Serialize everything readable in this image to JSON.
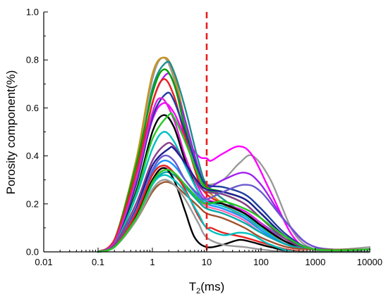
{
  "chart_data": {
    "type": "line",
    "x_scale": "log",
    "xlim": [
      0.01,
      10000
    ],
    "ylim": [
      0.0,
      1.0
    ],
    "xlabel_main": "T",
    "xlabel_sub": "2",
    "xlabel_unit": "(ms)",
    "ylabel": "Porosity component(%)",
    "xticks": [
      "0.01",
      "0.1",
      "1",
      "10",
      "100",
      "1000",
      "10000"
    ],
    "xtick_values": [
      0.01,
      0.1,
      1,
      10,
      100,
      1000,
      10000
    ],
    "yticks": [
      "0.0",
      "0.2",
      "0.4",
      "0.6",
      "0.8",
      "1.0"
    ],
    "ytick_values": [
      0.0,
      0.2,
      0.4,
      0.6,
      0.8,
      1.0
    ],
    "cutoff_line": {
      "x": 10,
      "color": "#e8201e",
      "style": "dashed"
    },
    "grid": false,
    "legend": "none",
    "series": [
      {
        "color": "#9a9a9a",
        "x": [
          0.1,
          0.2,
          0.5,
          1,
          1.6,
          2.5,
          4,
          7,
          10,
          20,
          40,
          70,
          150,
          400,
          1000,
          3000,
          10000
        ],
        "y": [
          0.0,
          0.05,
          0.38,
          0.72,
          0.81,
          0.72,
          0.5,
          0.31,
          0.28,
          0.3,
          0.37,
          0.4,
          0.3,
          0.08,
          0.01,
          0.01,
          0.02
        ]
      },
      {
        "color": "#ff00ff",
        "x": [
          0.1,
          0.2,
          0.5,
          1,
          1.6,
          2.5,
          4,
          7,
          10,
          12,
          20,
          40,
          70,
          150,
          400,
          1000,
          10000
        ],
        "y": [
          0.0,
          0.04,
          0.3,
          0.55,
          0.62,
          0.58,
          0.48,
          0.4,
          0.39,
          0.38,
          0.41,
          0.44,
          0.4,
          0.25,
          0.06,
          0.01,
          0.01
        ]
      },
      {
        "color": "#c8941e",
        "x": [
          0.1,
          0.2,
          0.5,
          1,
          1.7,
          2.5,
          4,
          7,
          10,
          20,
          50,
          100,
          300,
          1000,
          10000
        ],
        "y": [
          0.0,
          0.05,
          0.38,
          0.74,
          0.81,
          0.74,
          0.55,
          0.33,
          0.26,
          0.2,
          0.14,
          0.1,
          0.04,
          0.01,
          0.01
        ]
      },
      {
        "color": "#1e8c8c",
        "x": [
          0.1,
          0.2,
          0.5,
          1,
          1.8,
          2.5,
          4,
          7,
          10,
          20,
          50,
          100,
          300,
          1000,
          10000
        ],
        "y": [
          0.0,
          0.04,
          0.33,
          0.68,
          0.79,
          0.75,
          0.6,
          0.38,
          0.28,
          0.22,
          0.16,
          0.12,
          0.05,
          0.01,
          0.01
        ]
      },
      {
        "color": "#a020f0",
        "x": [
          0.1,
          0.2,
          0.5,
          1,
          1.8,
          2.5,
          4,
          7,
          10,
          20,
          50,
          100,
          300,
          1000,
          10000
        ],
        "y": [
          0.0,
          0.04,
          0.3,
          0.62,
          0.74,
          0.7,
          0.55,
          0.35,
          0.27,
          0.3,
          0.33,
          0.28,
          0.12,
          0.02,
          0.01
        ]
      },
      {
        "color": "#00a000",
        "x": [
          0.1,
          0.2,
          0.5,
          1,
          1.6,
          2.5,
          4,
          7,
          10,
          20,
          50,
          100,
          300,
          1000,
          10000
        ],
        "y": [
          0.0,
          0.05,
          0.36,
          0.66,
          0.76,
          0.7,
          0.52,
          0.33,
          0.27,
          0.25,
          0.22,
          0.16,
          0.06,
          0.01,
          0.01
        ]
      },
      {
        "color": "#e8201e",
        "x": [
          0.1,
          0.2,
          0.5,
          1,
          1.6,
          2.5,
          4,
          7,
          10,
          20,
          50,
          100,
          300,
          1000,
          10000
        ],
        "y": [
          0.0,
          0.05,
          0.33,
          0.62,
          0.72,
          0.65,
          0.48,
          0.3,
          0.24,
          0.2,
          0.16,
          0.11,
          0.04,
          0.01,
          0.01
        ]
      },
      {
        "color": "#1e3ca0",
        "x": [
          0.1,
          0.2,
          0.5,
          1,
          1.8,
          2.5,
          4,
          7,
          10,
          20,
          50,
          100,
          300,
          1000,
          10000
        ],
        "y": [
          0.0,
          0.03,
          0.28,
          0.56,
          0.66,
          0.63,
          0.5,
          0.34,
          0.28,
          0.27,
          0.24,
          0.18,
          0.07,
          0.01,
          0.01
        ]
      },
      {
        "color": "#e020e0",
        "x": [
          0.1,
          0.2,
          0.5,
          1,
          1.5,
          2.5,
          4,
          7,
          10,
          20,
          50,
          100,
          300,
          1000,
          10000
        ],
        "y": [
          0.0,
          0.04,
          0.3,
          0.58,
          0.64,
          0.55,
          0.4,
          0.27,
          0.22,
          0.2,
          0.17,
          0.12,
          0.04,
          0.01,
          0.01
        ]
      },
      {
        "color": "#000000",
        "x": [
          0.1,
          0.2,
          0.5,
          1,
          1.6,
          2.5,
          4,
          7,
          10,
          20,
          50,
          100,
          300,
          1000,
          10000
        ],
        "y": [
          0.0,
          0.03,
          0.25,
          0.5,
          0.57,
          0.52,
          0.38,
          0.25,
          0.21,
          0.2,
          0.16,
          0.11,
          0.04,
          0.01,
          0.01
        ]
      },
      {
        "color": "#22c822",
        "x": [
          0.1,
          0.2,
          0.5,
          1,
          2,
          2.5,
          4,
          7,
          10,
          20,
          50,
          100,
          300,
          1000,
          10000
        ],
        "y": [
          0.0,
          0.03,
          0.24,
          0.47,
          0.57,
          0.56,
          0.46,
          0.32,
          0.26,
          0.24,
          0.2,
          0.14,
          0.05,
          0.01,
          0.01
        ]
      },
      {
        "color": "#00c0c0",
        "x": [
          0.1,
          0.2,
          0.5,
          1,
          1.6,
          2.5,
          4,
          7,
          10,
          20,
          50,
          100,
          300,
          1000,
          10000
        ],
        "y": [
          0.0,
          0.03,
          0.23,
          0.43,
          0.5,
          0.46,
          0.36,
          0.25,
          0.21,
          0.19,
          0.15,
          0.1,
          0.03,
          0.01,
          0.01
        ]
      },
      {
        "color": "#8c3c8c",
        "x": [
          0.1,
          0.2,
          0.5,
          1,
          1.8,
          2.5,
          4,
          7,
          10,
          20,
          50,
          100,
          300,
          1000,
          10000
        ],
        "y": [
          0.0,
          0.03,
          0.2,
          0.38,
          0.45,
          0.44,
          0.37,
          0.28,
          0.25,
          0.24,
          0.2,
          0.14,
          0.05,
          0.01,
          0.01
        ]
      },
      {
        "color": "#1e1e96",
        "x": [
          0.1,
          0.2,
          0.5,
          1,
          2,
          2.5,
          4,
          7,
          10,
          20,
          50,
          100,
          300,
          1000,
          10000
        ],
        "y": [
          0.0,
          0.02,
          0.18,
          0.36,
          0.43,
          0.43,
          0.37,
          0.29,
          0.26,
          0.25,
          0.22,
          0.16,
          0.06,
          0.01,
          0.01
        ]
      },
      {
        "color": "#1e90ff",
        "x": [
          0.1,
          0.2,
          0.5,
          1,
          1.6,
          2.5,
          4,
          7,
          10,
          20,
          50,
          100,
          300,
          1000,
          10000
        ],
        "y": [
          0.0,
          0.02,
          0.17,
          0.33,
          0.38,
          0.36,
          0.3,
          0.23,
          0.2,
          0.18,
          0.14,
          0.09,
          0.03,
          0.01,
          0.01
        ]
      },
      {
        "color": "#6a5acd",
        "x": [
          0.1,
          0.2,
          0.5,
          1,
          1.6,
          2.5,
          4,
          7,
          10,
          20,
          50,
          100,
          300,
          1000,
          10000
        ],
        "y": [
          0.0,
          0.02,
          0.17,
          0.34,
          0.4,
          0.38,
          0.3,
          0.24,
          0.22,
          0.25,
          0.28,
          0.25,
          0.12,
          0.02,
          0.01
        ]
      },
      {
        "color": "#ff6eb4",
        "x": [
          0.1,
          0.2,
          0.5,
          1,
          1.6,
          2.5,
          4,
          7,
          10,
          20,
          50,
          100,
          300,
          1000,
          10000
        ],
        "y": [
          0.0,
          0.02,
          0.15,
          0.3,
          0.35,
          0.33,
          0.28,
          0.22,
          0.19,
          0.17,
          0.13,
          0.08,
          0.03,
          0.01,
          0.01
        ]
      },
      {
        "color": "#00aaaa",
        "x": [
          0.1,
          0.2,
          0.5,
          1,
          1.6,
          2.5,
          4,
          7,
          10,
          20,
          50,
          100,
          300,
          1000,
          10000
        ],
        "y": [
          0.0,
          0.02,
          0.14,
          0.28,
          0.33,
          0.32,
          0.27,
          0.21,
          0.18,
          0.16,
          0.12,
          0.08,
          0.03,
          0.01,
          0.01
        ]
      },
      {
        "color": "#a0522d",
        "x": [
          0.1,
          0.2,
          0.5,
          1,
          1.6,
          2.5,
          4,
          7,
          10,
          20,
          50,
          100,
          300,
          1000,
          10000
        ],
        "y": [
          0.0,
          0.02,
          0.13,
          0.25,
          0.29,
          0.28,
          0.24,
          0.19,
          0.16,
          0.14,
          0.1,
          0.06,
          0.02,
          0.01,
          0.01
        ]
      },
      {
        "color": "#000000",
        "x": [
          0.1,
          0.2,
          0.5,
          1,
          1.6,
          2.5,
          4,
          6,
          10,
          20,
          40,
          70,
          150,
          500,
          10000
        ],
        "y": [
          0.0,
          0.02,
          0.15,
          0.3,
          0.35,
          0.3,
          0.17,
          0.06,
          0.02,
          0.03,
          0.05,
          0.04,
          0.02,
          0.0,
          0.0
        ]
      },
      {
        "color": "#e8201e",
        "x": [
          0.1,
          0.2,
          0.5,
          1,
          1.6,
          2.5,
          4,
          7,
          10,
          12,
          20,
          50,
          100,
          300,
          1000,
          10000
        ],
        "y": [
          0.0,
          0.02,
          0.16,
          0.32,
          0.36,
          0.33,
          0.26,
          0.15,
          0.1,
          0.1,
          0.08,
          0.06,
          0.04,
          0.01,
          0.0,
          0.0
        ]
      },
      {
        "color": "#00c0c0",
        "x": [
          0.1,
          0.2,
          0.5,
          1,
          1.6,
          2.5,
          4,
          7,
          10,
          20,
          40,
          70,
          150,
          500,
          10000
        ],
        "y": [
          0.0,
          0.02,
          0.14,
          0.28,
          0.32,
          0.3,
          0.25,
          0.16,
          0.1,
          0.07,
          0.08,
          0.07,
          0.03,
          0.0,
          0.0
        ]
      },
      {
        "color": "#9a9a9a",
        "x": [
          0.1,
          0.2,
          0.5,
          1,
          1.6,
          2.5,
          4,
          7,
          10,
          20,
          50,
          100,
          300,
          1000,
          10000
        ],
        "y": [
          0.0,
          0.02,
          0.13,
          0.26,
          0.3,
          0.28,
          0.22,
          0.12,
          0.06,
          0.03,
          0.02,
          0.01,
          0.0,
          0.0,
          0.0
        ]
      },
      {
        "color": "#22c822",
        "x": [
          0.1,
          0.2,
          0.5,
          1,
          1.6,
          2.5,
          4,
          7,
          10,
          20,
          50,
          100,
          300,
          1000,
          10000
        ],
        "y": [
          0.0,
          0.02,
          0.14,
          0.29,
          0.34,
          0.33,
          0.28,
          0.22,
          0.2,
          0.21,
          0.18,
          0.14,
          0.06,
          0.01,
          0.01
        ]
      }
    ]
  }
}
